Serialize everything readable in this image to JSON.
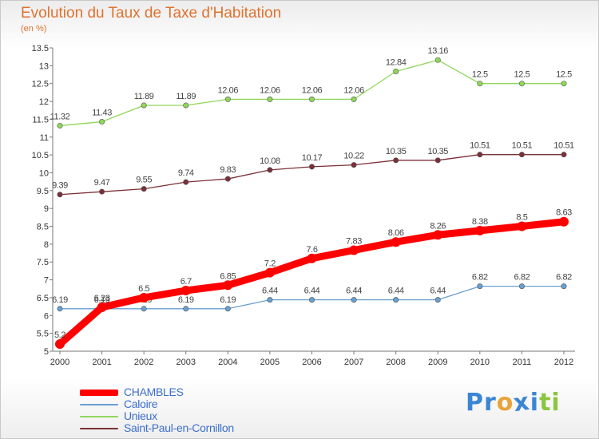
{
  "chart_data": {
    "type": "line",
    "title": "Evolution du Taux de Taxe d'Habitation",
    "subtitle": "(en %)",
    "x": [
      "2000",
      "2001",
      "2002",
      "2003",
      "2004",
      "2005",
      "2006",
      "2007",
      "2008",
      "2009",
      "2010",
      "2011",
      "2012"
    ],
    "ylim": [
      5,
      13.5
    ],
    "yticks": [
      "5",
      "5.5",
      "6",
      "6.5",
      "7",
      "7.5",
      "8",
      "8.5",
      "9",
      "9.5",
      "10",
      "10.5",
      "11",
      "11.5",
      "12",
      "12.5",
      "13",
      "13.5"
    ],
    "grid": false,
    "legend_position": "bottom-left",
    "series": [
      {
        "name": "Unieux",
        "color": "#8fd65a",
        "values": [
          11.32,
          11.43,
          11.89,
          11.89,
          12.06,
          12.06,
          12.06,
          12.06,
          12.84,
          13.16,
          12.5,
          12.5,
          12.5
        ],
        "labels": [
          "11.32",
          "11.43",
          "11.89",
          "11.89",
          "12.06",
          "12.06",
          "12.06",
          "12.06",
          "12.84",
          "13.16",
          "12.5",
          "12.5",
          "12.5"
        ]
      },
      {
        "name": "Saint-Paul-en-Cornillon",
        "color": "#7a3038",
        "values": [
          9.39,
          9.47,
          9.55,
          9.74,
          9.83,
          10.08,
          10.17,
          10.22,
          10.35,
          10.35,
          10.51,
          10.51,
          10.51
        ],
        "labels": [
          "9.39",
          "9.47",
          "9.55",
          "9.74",
          "9.83",
          "10.08",
          "10.17",
          "10.22",
          "10.35",
          "10.35",
          "10.51",
          "10.51",
          "10.51"
        ]
      },
      {
        "name": "Caloire",
        "color": "#6a9fd0",
        "values": [
          6.19,
          6.19,
          6.19,
          6.19,
          6.19,
          6.44,
          6.44,
          6.44,
          6.44,
          6.44,
          6.82,
          6.82,
          6.82
        ],
        "labels": [
          "6.19",
          "6.19",
          "6.19",
          "6.19",
          "6.19",
          "6.44",
          "6.44",
          "6.44",
          "6.44",
          "6.44",
          "6.82",
          "6.82",
          "6.82"
        ]
      },
      {
        "name": "CHAMBLES",
        "color": "#ff0000",
        "values": [
          5.2,
          6.23,
          6.5,
          6.7,
          6.85,
          7.2,
          7.6,
          7.83,
          8.06,
          8.26,
          8.38,
          8.5,
          8.63
        ],
        "labels": [
          "5.2",
          "6.23",
          "6.5",
          "6.7",
          "6.85",
          "7.2",
          "7.6",
          "7.83",
          "8.06",
          "8.26",
          "8.38",
          "8.5",
          "8.63"
        ]
      }
    ]
  },
  "legend": {
    "items": [
      {
        "label": "CHAMBLES",
        "color": "#ff0000"
      },
      {
        "label": "Caloire",
        "color": "#6a9fd0"
      },
      {
        "label": "Unieux",
        "color": "#8fd65a"
      },
      {
        "label": "Saint-Paul-en-Cornillon",
        "color": "#7a3038"
      }
    ]
  },
  "logo": {
    "text": "Proxiti",
    "letters": [
      {
        "ch": "P",
        "color": "#3a86d4"
      },
      {
        "ch": "r",
        "color": "#3a86d4"
      },
      {
        "ch": "o",
        "color": "#e8a33a"
      },
      {
        "ch": "x",
        "color": "#3a86d4"
      },
      {
        "ch": "i",
        "color": "#3a86d4"
      },
      {
        "ch": "t",
        "color": "#8cc63f"
      },
      {
        "ch": "i",
        "color": "#8cc63f"
      }
    ]
  }
}
